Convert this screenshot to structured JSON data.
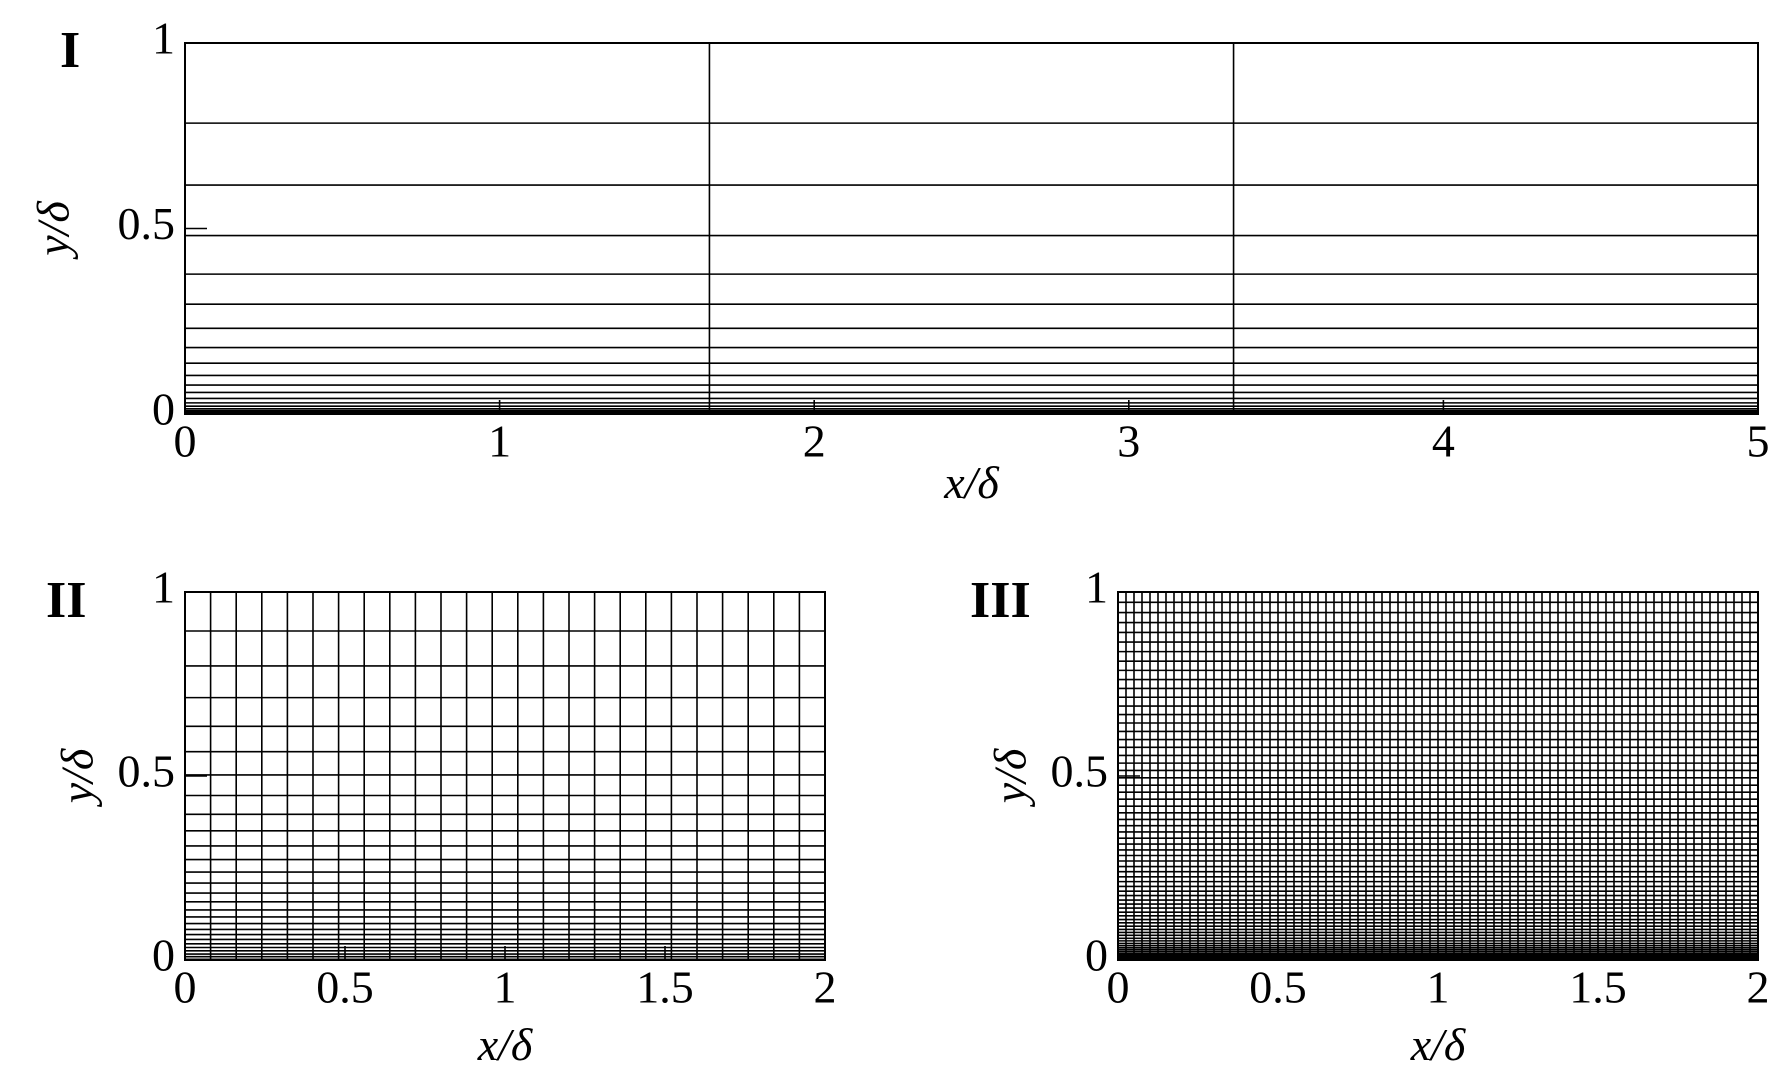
{
  "chart_data": [
    {
      "type": "mesh",
      "label": "I",
      "xlabel": "x/δ",
      "ylabel": "y/δ",
      "xlim": [
        0,
        5
      ],
      "ylim": [
        0,
        1
      ],
      "xticks": [
        0,
        1,
        2,
        3,
        4,
        5
      ],
      "yticks": [
        0,
        0.5,
        1
      ],
      "xlines": [
        1.667,
        3.333
      ],
      "ylines": [
        0.784,
        0.617,
        0.481,
        0.377,
        0.296,
        0.231,
        0.179,
        0.137,
        0.104,
        0.078,
        0.058,
        0.042,
        0.03,
        0.021,
        0.014,
        0.009,
        0.005,
        0.002
      ]
    },
    {
      "type": "mesh",
      "label": "II",
      "xlabel": "x/δ",
      "ylabel": "y/δ",
      "xlim": [
        0,
        2
      ],
      "ylim": [
        0,
        1
      ],
      "xticks": [
        0,
        0.5,
        1,
        1.5,
        2
      ],
      "yticks": [
        0,
        0.5,
        1
      ],
      "xlines": [
        0.08,
        0.16,
        0.24,
        0.32,
        0.4,
        0.48,
        0.56,
        0.64,
        0.72,
        0.8,
        0.88,
        0.96,
        1.04,
        1.12,
        1.2,
        1.28,
        1.36,
        1.44,
        1.52,
        1.6,
        1.68,
        1.76,
        1.84,
        1.92
      ],
      "ylines": [
        0.894,
        0.799,
        0.713,
        0.635,
        0.566,
        0.503,
        0.447,
        0.396,
        0.351,
        0.31,
        0.273,
        0.239,
        0.209,
        0.182,
        0.158,
        0.136,
        0.117,
        0.099,
        0.083,
        0.069,
        0.056,
        0.044,
        0.034,
        0.025,
        0.016,
        0.009,
        0.002
      ]
    },
    {
      "type": "mesh",
      "label": "III",
      "xlabel": "x/δ",
      "ylabel": "y/δ",
      "xlim": [
        0,
        2
      ],
      "ylim": [
        0,
        1
      ],
      "xticks": [
        0,
        0.5,
        1,
        1.5,
        2
      ],
      "yticks": [
        0,
        0.5,
        1
      ],
      "xlines": [
        0.025,
        0.05,
        0.075,
        0.1,
        0.125,
        0.15,
        0.175,
        0.2,
        0.225,
        0.25,
        0.275,
        0.3,
        0.325,
        0.35,
        0.375,
        0.4,
        0.425,
        0.45,
        0.475,
        0.5,
        0.525,
        0.55,
        0.575,
        0.6,
        0.625,
        0.65,
        0.675,
        0.7,
        0.725,
        0.75,
        0.775,
        0.8,
        0.825,
        0.85,
        0.875,
        0.9,
        0.925,
        0.95,
        0.975,
        1.0,
        1.025,
        1.05,
        1.075,
        1.1,
        1.125,
        1.15,
        1.175,
        1.2,
        1.225,
        1.25,
        1.275,
        1.3,
        1.325,
        1.35,
        1.375,
        1.4,
        1.425,
        1.45,
        1.475,
        1.5,
        1.525,
        1.55,
        1.575,
        1.6,
        1.625,
        1.65,
        1.675,
        1.7,
        1.725,
        1.75,
        1.775,
        1.8,
        1.825,
        1.85,
        1.875,
        1.9,
        1.925,
        1.95,
        1.975
      ],
      "ylines": [
        0.972,
        0.944,
        0.917,
        0.89,
        0.864,
        0.838,
        0.812,
        0.787,
        0.762,
        0.738,
        0.714,
        0.69,
        0.667,
        0.644,
        0.621,
        0.599,
        0.578,
        0.556,
        0.535,
        0.515,
        0.495,
        0.475,
        0.456,
        0.437,
        0.418,
        0.4,
        0.382,
        0.365,
        0.348,
        0.331,
        0.315,
        0.299,
        0.284,
        0.269,
        0.254,
        0.24,
        0.226,
        0.213,
        0.2,
        0.187,
        0.175,
        0.163,
        0.152,
        0.141,
        0.13,
        0.12,
        0.11,
        0.101,
        0.092,
        0.083,
        0.075,
        0.067,
        0.059,
        0.052,
        0.045,
        0.039,
        0.033,
        0.028,
        0.023,
        0.018,
        0.014,
        0.01,
        0.006,
        0.003
      ]
    }
  ]
}
